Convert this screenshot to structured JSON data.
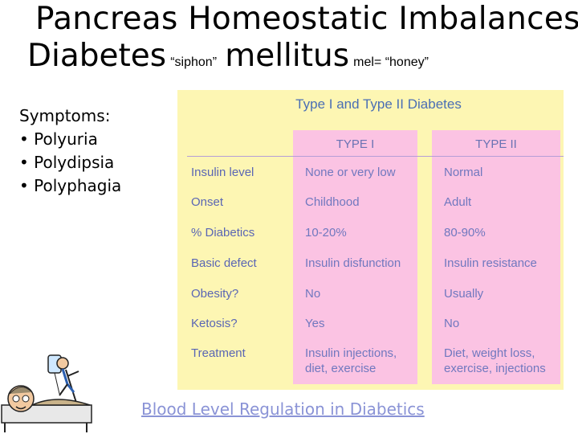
{
  "title": {
    "line1": "Pancreas Homeostatic Imbalances",
    "word_diabetes": "Diabetes",
    "note_siphon": "“siphon”",
    "word_mellitus": "mellitus",
    "note_honey": "mel= “honey”"
  },
  "symptoms": {
    "heading": "Symptoms:",
    "items": [
      "• Polyuria",
      "• Polydipsia",
      "• Polyphagia"
    ]
  },
  "figure": {
    "title": "Type I and Type II Diabetes",
    "columns": [
      "TYPE I",
      "TYPE II"
    ],
    "rows": [
      {
        "label": "Insulin level",
        "type1": [
          "None or very low"
        ],
        "type2": [
          "Normal"
        ]
      },
      {
        "label": "Onset",
        "type1": [
          "Childhood"
        ],
        "type2": [
          "Adult"
        ]
      },
      {
        "label": "% Diabetics",
        "type1": [
          "10-20%"
        ],
        "type2": [
          "80-90%"
        ]
      },
      {
        "label": "Basic defect",
        "type1": [
          "Insulin disfunction"
        ],
        "type2": [
          "Insulin resistance"
        ]
      },
      {
        "label": "Obesity?",
        "type1": [
          "No"
        ],
        "type2": [
          "Usually"
        ]
      },
      {
        "label": "Ketosis?",
        "type1": [
          "Yes"
        ],
        "type2": [
          "No"
        ]
      },
      {
        "label": "Treatment",
        "type1": [
          "Insulin injections,",
          "diet, exercise"
        ],
        "type2": [
          "Diet, weight loss,",
          "exercise, injections"
        ]
      }
    ],
    "colors": {
      "background": "#fdf6b3",
      "column": "#fbc3e3",
      "text": "#7078bf",
      "title": "#4a6fb4"
    }
  },
  "link": {
    "text": "Blood Level Regulation in Diabetics"
  },
  "clipart": {
    "icon": "cartoon-patient-with-iv-drip-icon"
  }
}
